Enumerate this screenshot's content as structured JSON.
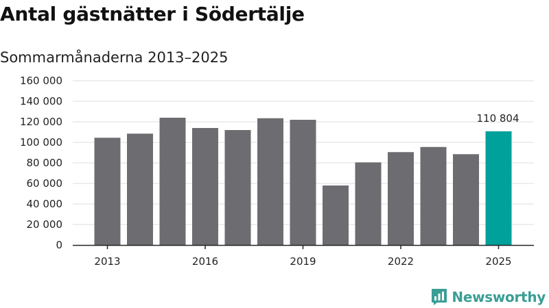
{
  "chart_data": {
    "type": "bar",
    "title": "Antal gästnätter i Södertälje",
    "subtitle": "Sommarmånaderna 2013–2025",
    "categories": [
      "2013",
      "2014",
      "2015",
      "2016",
      "2017",
      "2018",
      "2019",
      "2020",
      "2021",
      "2022",
      "2023",
      "2024",
      "2025"
    ],
    "values": [
      104500,
      108500,
      124000,
      114000,
      112000,
      123500,
      122000,
      58000,
      80500,
      90500,
      95500,
      88500,
      110804
    ],
    "x_tick_labels": [
      "2013",
      "2016",
      "2019",
      "2022",
      "2025"
    ],
    "y_tick_labels": [
      "0",
      "20 000",
      "40 000",
      "60 000",
      "80 000",
      "100 000",
      "120 000",
      "140 000",
      "160 000"
    ],
    "ylim": [
      0,
      160000
    ],
    "grid": true,
    "highlight": {
      "index": 12,
      "label": "110 804"
    },
    "colors": {
      "bar": "#6d6c70",
      "highlight": "#00a19a",
      "grid": "#dddddd",
      "axis": "#222222"
    }
  },
  "brand": {
    "name": "Newsworthy",
    "color": "#3a9e96",
    "logo": "newsworthy-logo-icon"
  }
}
